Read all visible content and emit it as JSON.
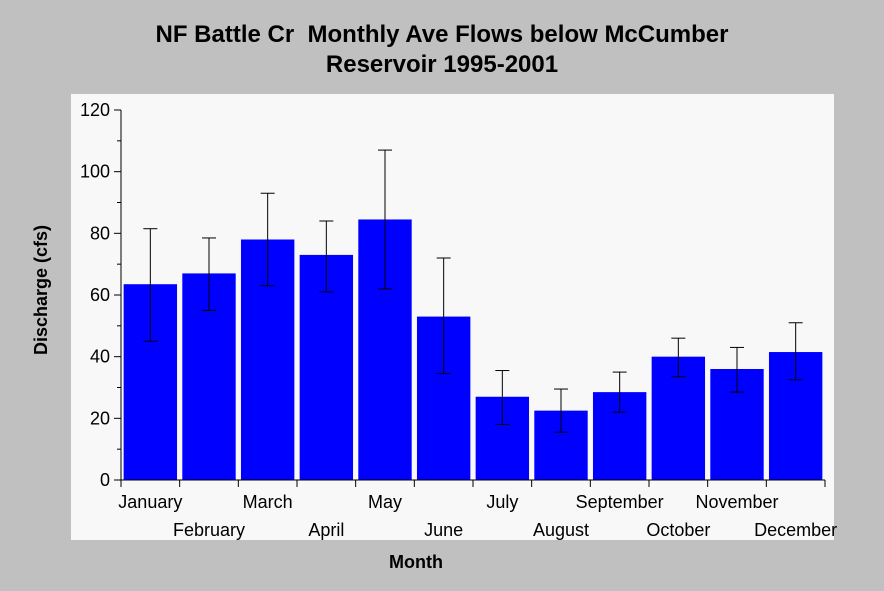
{
  "chart_data": {
    "type": "bar",
    "title_line1": "NF Battle Cr  Monthly Ave Flows below McCumber",
    "title_line2": "Reservoir 1995-2001",
    "xlabel": "Month",
    "ylabel": "Discharge (cfs)",
    "ylim": [
      0,
      120
    ],
    "yticks": [
      0,
      20,
      40,
      60,
      80,
      100,
      120
    ],
    "grid": false,
    "categories": [
      "January",
      "February",
      "March",
      "April",
      "May",
      "June",
      "July",
      "August",
      "September",
      "October",
      "November",
      "December"
    ],
    "values": [
      63.5,
      67,
      78,
      73,
      84.5,
      53,
      27,
      22.5,
      28.5,
      40,
      36,
      41.5
    ],
    "error_low": [
      45,
      55,
      63,
      61,
      62,
      34.5,
      18,
      15.5,
      22,
      33.5,
      28.5,
      32.5
    ],
    "error_high": [
      81.5,
      78.5,
      93,
      84,
      107,
      72,
      35.5,
      29.5,
      35,
      46,
      43,
      51
    ],
    "bar_color": "#0000ff",
    "plot_background": "#f8f8f8",
    "page_background": "#c0c0c0"
  }
}
